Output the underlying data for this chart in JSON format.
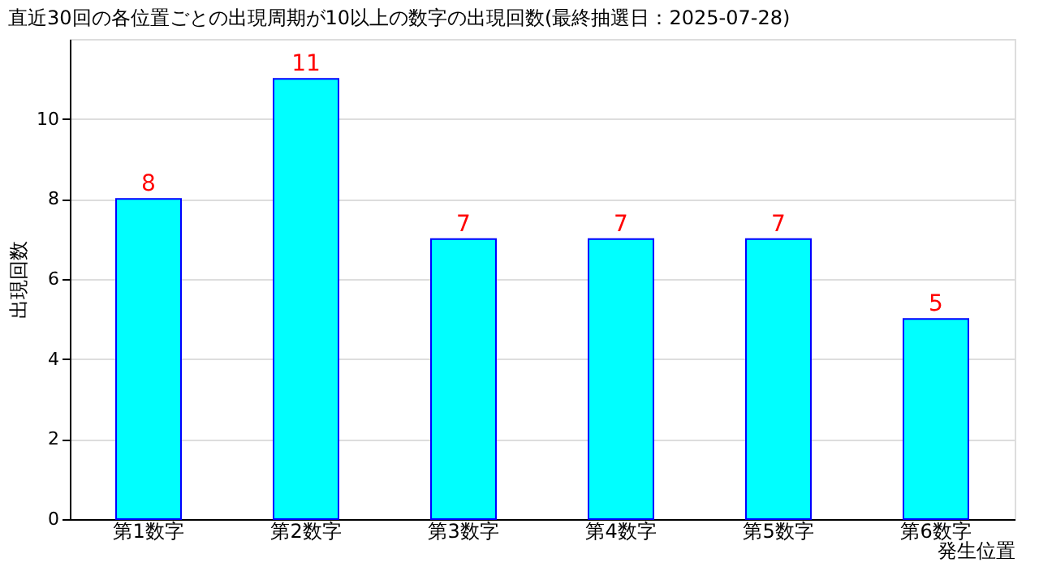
{
  "chart_data": {
    "type": "bar",
    "title": "直近30回の各位置ごとの出現周期が10以上の数字の出現回数(最終抽選日：2025-07-28)",
    "categories": [
      "第1数字",
      "第2数字",
      "第3数字",
      "第4数字",
      "第5数字",
      "第6数字"
    ],
    "values": [
      8,
      11,
      7,
      7,
      7,
      5
    ],
    "color": "#00ffff",
    "xlabel": "発生位置",
    "ylabel": "出現回数",
    "ylim": [
      0,
      12
    ],
    "yticks": [
      0,
      2,
      4,
      6,
      8,
      10
    ],
    "grid": "y",
    "data_labels": true
  }
}
